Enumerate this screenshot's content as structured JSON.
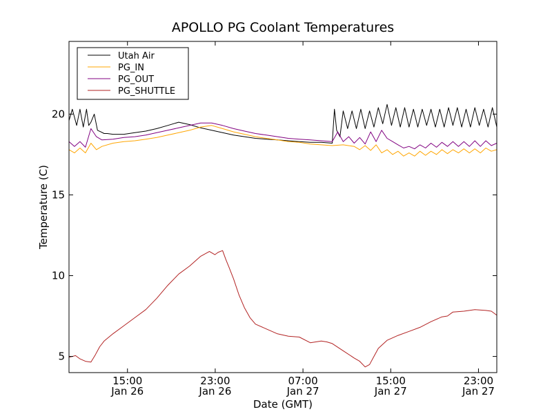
{
  "chart_data": {
    "type": "line",
    "title": "APOLLO PG Coolant Temperatures",
    "xlabel": "Date (GMT)",
    "ylabel": "Temperature (C)",
    "x_unit": "hours since Jan 26 09:40 GMT",
    "xlim": [
      0,
      39.0
    ],
    "ylim": [
      4.0,
      24.5
    ],
    "grid": false,
    "legend_position": "top-left",
    "yticks": [
      {
        "value": 5,
        "label": "5"
      },
      {
        "value": 10,
        "label": "10"
      },
      {
        "value": 15,
        "label": "15"
      },
      {
        "value": 20,
        "label": "20"
      }
    ],
    "xticks": [
      {
        "value": 5.33,
        "label1": "15:00",
        "label2": "Jan 26"
      },
      {
        "value": 13.33,
        "label1": "23:00",
        "label2": "Jan 26"
      },
      {
        "value": 21.33,
        "label1": "07:00",
        "label2": "Jan 27"
      },
      {
        "value": 29.33,
        "label1": "15:00",
        "label2": "Jan 27"
      },
      {
        "value": 37.33,
        "label1": "23:00",
        "label2": "Jan 27"
      }
    ],
    "series": [
      {
        "name": "Utah Air",
        "color": "#000000",
        "x": [
          0,
          0.3,
          0.7,
          1.0,
          1.3,
          1.6,
          1.8,
          2.0,
          2.3,
          2.6,
          2.9,
          3.2,
          3.5,
          4.0,
          5.0,
          6.0,
          7.0,
          8.0,
          9.0,
          10.0,
          11.0,
          12.0,
          13.0,
          14.0,
          15.0,
          16.0,
          17.0,
          18.0,
          19.0,
          20.0,
          21.0,
          22.0,
          23.0,
          24.0,
          24.2,
          24.4,
          24.7,
          25.0,
          25.4,
          25.8,
          26.2,
          26.6,
          27.0,
          27.4,
          27.8,
          28.2,
          28.6,
          29.0,
          29.4,
          29.8,
          30.2,
          30.6,
          31.0,
          31.4,
          31.8,
          32.2,
          32.6,
          33.0,
          33.4,
          33.8,
          34.2,
          34.6,
          35.0,
          35.4,
          35.8,
          36.2,
          36.6,
          37.0,
          37.4,
          37.8,
          38.2,
          38.6,
          39.0
        ],
        "y": [
          19.6,
          20.3,
          19.3,
          20.3,
          19.2,
          20.3,
          19.3,
          19.5,
          20.0,
          19.0,
          18.9,
          18.8,
          18.8,
          18.75,
          18.75,
          18.85,
          18.95,
          19.1,
          19.3,
          19.5,
          19.35,
          19.15,
          19.0,
          18.85,
          18.7,
          18.6,
          18.5,
          18.45,
          18.4,
          18.35,
          18.3,
          18.25,
          18.25,
          18.2,
          20.3,
          19.0,
          18.6,
          20.2,
          19.1,
          20.2,
          19.1,
          20.3,
          19.1,
          20.2,
          19.2,
          20.4,
          19.4,
          20.6,
          19.3,
          20.4,
          19.2,
          20.4,
          19.2,
          20.3,
          19.2,
          20.3,
          19.3,
          20.3,
          19.2,
          20.3,
          19.2,
          20.4,
          19.3,
          20.4,
          19.2,
          20.3,
          19.2,
          20.4,
          19.3,
          20.3,
          19.2,
          20.4,
          19.2
        ]
      },
      {
        "name": "PG_IN",
        "color": "#ffa500",
        "x": [
          0,
          0.5,
          1.0,
          1.5,
          2.0,
          2.5,
          3.0,
          4.0,
          5.0,
          6.0,
          7.0,
          8.0,
          9.0,
          10.0,
          11.0,
          12.0,
          13.0,
          14.0,
          15.0,
          16.0,
          17.0,
          18.0,
          19.0,
          20.0,
          21.0,
          22.0,
          23.0,
          24.0,
          25.0,
          26.0,
          26.5,
          27.0,
          27.5,
          28.0,
          28.5,
          29.0,
          29.5,
          30.0,
          30.5,
          31.0,
          31.5,
          32.0,
          32.5,
          33.0,
          33.5,
          34.0,
          34.5,
          35.0,
          35.5,
          36.0,
          36.5,
          37.0,
          37.5,
          38.0,
          38.5,
          39.0
        ],
        "y": [
          17.8,
          17.6,
          17.9,
          17.6,
          18.2,
          17.8,
          18.0,
          18.2,
          18.3,
          18.35,
          18.45,
          18.55,
          18.7,
          18.85,
          19.0,
          19.2,
          19.3,
          19.1,
          18.9,
          18.75,
          18.6,
          18.5,
          18.4,
          18.3,
          18.25,
          18.15,
          18.1,
          18.05,
          18.1,
          18.0,
          17.8,
          18.05,
          17.75,
          18.1,
          17.6,
          17.8,
          17.5,
          17.7,
          17.4,
          17.6,
          17.4,
          17.7,
          17.45,
          17.7,
          17.5,
          17.8,
          17.55,
          17.8,
          17.6,
          17.85,
          17.6,
          17.85,
          17.6,
          17.9,
          17.7,
          17.8
        ]
      },
      {
        "name": "PG_OUT",
        "color": "#800080",
        "x": [
          0,
          0.5,
          1.0,
          1.5,
          2.0,
          2.5,
          3.0,
          4.0,
          5.0,
          6.0,
          7.0,
          8.0,
          9.0,
          10.0,
          11.0,
          12.0,
          13.0,
          14.0,
          15.0,
          16.0,
          17.0,
          18.0,
          19.0,
          20.0,
          21.0,
          22.0,
          23.0,
          24.0,
          24.5,
          25.0,
          25.5,
          26.0,
          26.5,
          27.0,
          27.5,
          28.0,
          28.5,
          29.0,
          29.5,
          30.0,
          30.5,
          31.0,
          31.5,
          32.0,
          32.5,
          33.0,
          33.5,
          34.0,
          34.5,
          35.0,
          35.5,
          36.0,
          36.5,
          37.0,
          37.5,
          38.0,
          38.5,
          39.0
        ],
        "y": [
          18.3,
          18.0,
          18.3,
          17.95,
          19.1,
          18.6,
          18.4,
          18.45,
          18.55,
          18.6,
          18.7,
          18.85,
          19.0,
          19.15,
          19.3,
          19.45,
          19.45,
          19.3,
          19.1,
          18.95,
          18.8,
          18.7,
          18.6,
          18.5,
          18.45,
          18.4,
          18.35,
          18.3,
          18.9,
          18.3,
          18.6,
          18.2,
          18.55,
          18.15,
          18.9,
          18.3,
          19.0,
          18.5,
          18.3,
          18.1,
          17.9,
          18.0,
          17.85,
          18.1,
          17.9,
          18.2,
          17.95,
          18.25,
          18.0,
          18.3,
          18.0,
          18.3,
          18.0,
          18.35,
          18.0,
          18.35,
          18.05,
          18.2
        ]
      },
      {
        "name": "PG_SHUTTLE",
        "color": "#b22222",
        "x": [
          0,
          0.6,
          1.0,
          1.5,
          2.0,
          2.4,
          2.8,
          3.2,
          4.0,
          5.0,
          6.0,
          7.0,
          8.0,
          9.0,
          10.0,
          11.0,
          12.0,
          12.8,
          13.3,
          13.6,
          14.0,
          14.3,
          14.6,
          15.0,
          15.5,
          16.0,
          16.5,
          17.0,
          18.0,
          19.0,
          20.0,
          21.0,
          22.0,
          22.5,
          23.0,
          23.5,
          24.0,
          25.0,
          26.0,
          26.5,
          27.0,
          27.4,
          27.8,
          28.2,
          29.0,
          30.0,
          31.0,
          32.0,
          33.0,
          34.0,
          34.5,
          35.0,
          36.0,
          37.0,
          38.0,
          38.5,
          39.0
        ],
        "y": [
          4.95,
          5.05,
          4.85,
          4.7,
          4.65,
          5.1,
          5.6,
          5.95,
          6.4,
          6.9,
          7.4,
          7.9,
          8.6,
          9.4,
          10.1,
          10.6,
          11.2,
          11.5,
          11.3,
          11.45,
          11.55,
          11.0,
          10.5,
          9.8,
          8.8,
          8.0,
          7.4,
          7.0,
          6.7,
          6.4,
          6.25,
          6.2,
          5.85,
          5.9,
          5.95,
          5.9,
          5.8,
          5.35,
          4.9,
          4.7,
          4.35,
          4.5,
          5.0,
          5.5,
          6.0,
          6.3,
          6.55,
          6.8,
          7.15,
          7.45,
          7.5,
          7.75,
          7.8,
          7.9,
          7.85,
          7.8,
          7.55
        ]
      }
    ]
  }
}
